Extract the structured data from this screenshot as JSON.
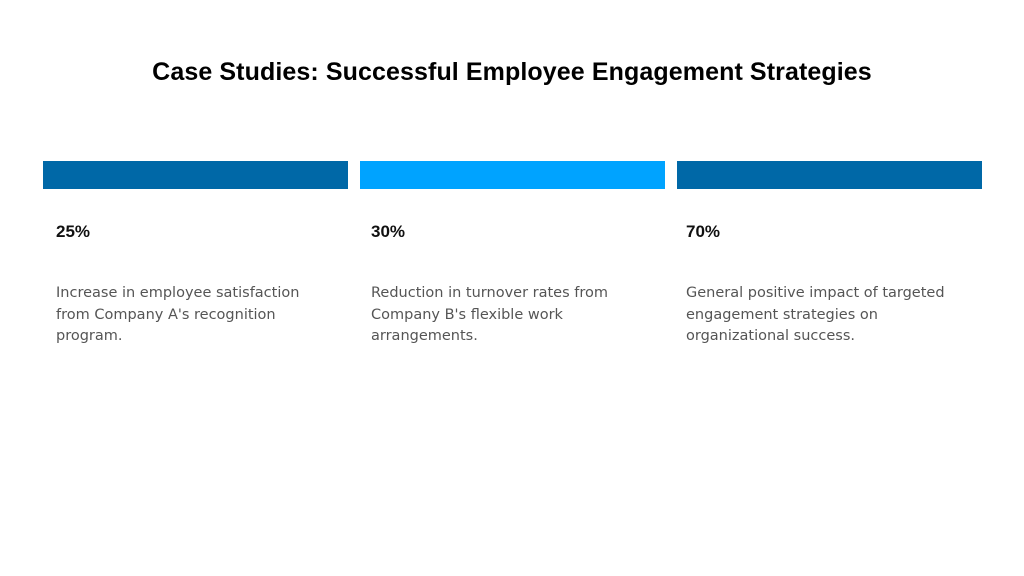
{
  "slide": {
    "title": "Case Studies: Successful Employee Engagement Strategies",
    "cards": [
      {
        "stat": "25%",
        "description": "Increase in employee satisfaction from Company A's recognition program.",
        "bar_color": "#0068A7"
      },
      {
        "stat": "30%",
        "description": "Reduction in turnover rates from Company B's flexible work arrangements.",
        "bar_color": "#00A3FF"
      },
      {
        "stat": "70%",
        "description": "General positive impact of targeted engagement strategies on organizational success.",
        "bar_color": "#0068A7"
      }
    ]
  }
}
